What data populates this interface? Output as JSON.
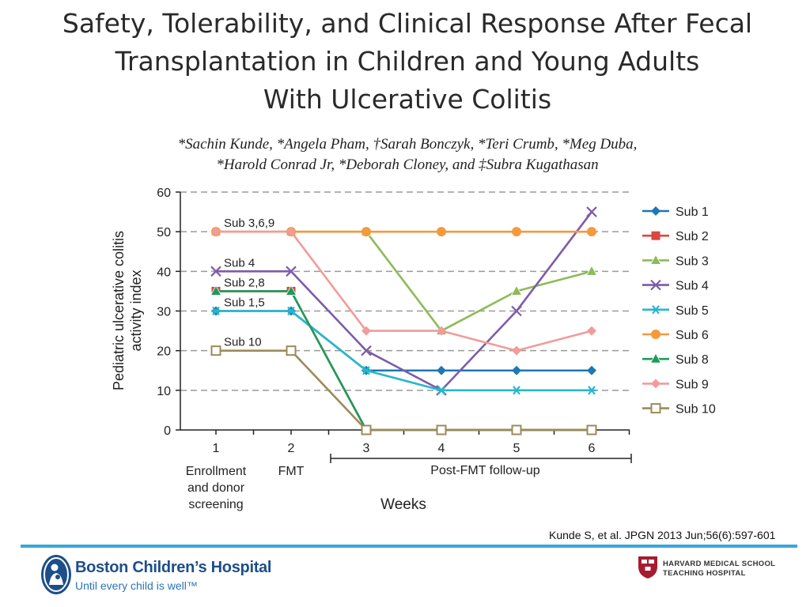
{
  "slide": {
    "title_lines": [
      "Safety, Tolerability, and Clinical Response After Fecal",
      "Transplantation in Children and Young Adults",
      "With Ulcerative Colitis"
    ],
    "authors_lines": [
      "*Sachin Kunde, *Angela Pham, †Sarah Bonczyk, *Teri Crumb, *Meg Duba,",
      "*Harold Conrad Jr, *Deborah Cloney, and ‡Subra Kugathasan"
    ],
    "citation": "Kunde S, et al. JPGN 2013 Jun;56(6):597-601",
    "footer": {
      "hospital_name": "Boston Children’s Hospital",
      "tagline": "Until every child is well™",
      "partner_line1": "HARVARD MEDICAL SCHOOL",
      "partner_line2": "TEACHING HOSPITAL",
      "divider_color": "#39a7d7",
      "brand_color": "#1d4e89"
    }
  },
  "chart_data": {
    "type": "line",
    "ylabel": "Pediatric ulcerative colitis activity index",
    "xlabel": "Weeks",
    "ylim": [
      0,
      60
    ],
    "yticks": [
      0,
      10,
      20,
      30,
      40,
      50,
      60
    ],
    "x": [
      1,
      2,
      3,
      4,
      5,
      6
    ],
    "x_tick_labels": [
      "1",
      "2",
      "3",
      "4",
      "5",
      "6"
    ],
    "x_sub_labels": [
      {
        "x": 1,
        "lines": [
          "Enrollment",
          "and donor",
          "screening"
        ]
      },
      {
        "x": 2,
        "lines": [
          "FMT"
        ]
      }
    ],
    "phase_bracket": {
      "from": 3,
      "to": 6,
      "label": "Post-FMT follow-up"
    },
    "grid": "horizontal dashed",
    "legend_position": "right",
    "series": [
      {
        "name": "Sub 1",
        "color": "#1f77b4",
        "marker": "diamond",
        "values": [
          30,
          30,
          15,
          15,
          15,
          15
        ]
      },
      {
        "name": "Sub 2",
        "color": "#d9473f",
        "marker": "square",
        "values": [
          35,
          35,
          0,
          0,
          0,
          0
        ]
      },
      {
        "name": "Sub 3",
        "color": "#8dbb57",
        "marker": "triangle",
        "values": [
          50,
          50,
          50,
          25,
          35,
          40
        ]
      },
      {
        "name": "Sub 4",
        "color": "#7d5ca8",
        "marker": "x",
        "values": [
          40,
          40,
          20,
          10,
          30,
          55
        ]
      },
      {
        "name": "Sub 5",
        "color": "#27b7cc",
        "marker": "asterisk",
        "values": [
          30,
          30,
          15,
          10,
          10,
          10
        ]
      },
      {
        "name": "Sub 6",
        "color": "#f39a3d",
        "marker": "circle",
        "values": [
          50,
          50,
          50,
          50,
          50,
          50
        ]
      },
      {
        "name": "Sub 8",
        "color": "#1e9a5a",
        "marker": "triangle",
        "values": [
          35,
          35,
          0,
          0,
          0,
          0
        ]
      },
      {
        "name": "Sub 9",
        "color": "#f29b9b",
        "marker": "diamond",
        "values": [
          50,
          50,
          25,
          25,
          20,
          25
        ]
      },
      {
        "name": "Sub 10",
        "color": "#9c8a58",
        "marker": "open-square",
        "values": [
          20,
          20,
          0,
          0,
          0,
          0
        ]
      }
    ],
    "annotations": [
      {
        "text": "Sub 3,6,9",
        "x": 1,
        "y": 50
      },
      {
        "text": "Sub 4",
        "x": 1,
        "y": 40
      },
      {
        "text": "Sub 2,8",
        "x": 1,
        "y": 35
      },
      {
        "text": "Sub 1,5",
        "x": 1,
        "y": 30
      },
      {
        "text": "Sub 10",
        "x": 1,
        "y": 20
      }
    ]
  }
}
